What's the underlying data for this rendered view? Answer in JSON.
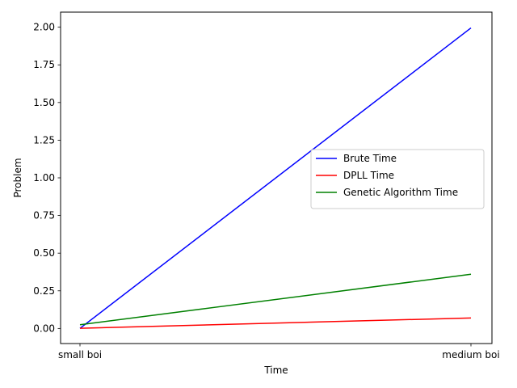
{
  "chart_data": {
    "type": "line",
    "title": "",
    "xlabel": "Time",
    "ylabel": "Problem",
    "categories": [
      "small boi",
      "medium boi"
    ],
    "ylim": [
      -0.1,
      2.1
    ],
    "yticks": [
      0.0,
      0.25,
      0.5,
      0.75,
      1.0,
      1.25,
      1.5,
      1.75,
      2.0
    ],
    "ytick_labels": [
      "0.00",
      "0.25",
      "0.50",
      "0.75",
      "1.00",
      "1.25",
      "1.50",
      "1.75",
      "2.00"
    ],
    "grid": false,
    "legend_position": "center-right",
    "series": [
      {
        "name": "Brute Time",
        "color": "#0000ff",
        "values": [
          0.001,
          1.995
        ]
      },
      {
        "name": "DPLL Time",
        "color": "#ff0000",
        "values": [
          0.001,
          0.07
        ]
      },
      {
        "name": "Genetic Algorithm Time",
        "color": "#008000",
        "values": [
          0.025,
          0.36
        ]
      }
    ]
  }
}
